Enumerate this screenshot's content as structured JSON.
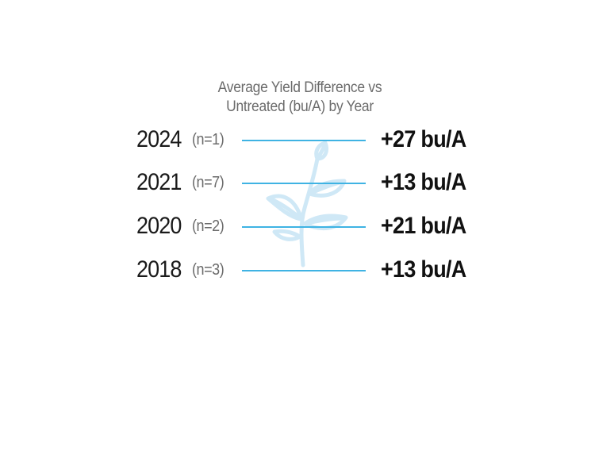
{
  "title": {
    "line1": "Average Yield Difference vs",
    "line2": "Untreated (bu/A) by Year"
  },
  "accent_color": "#3fb3e3",
  "watermark_icon": "plant-sprout-icon",
  "rows": [
    {
      "year": "2024",
      "count": "(n=1)",
      "value": "+27 bu/A"
    },
    {
      "year": "2021",
      "count": "(n=7)",
      "value": "+13 bu/A"
    },
    {
      "year": "2020",
      "count": "(n=2)",
      "value": "+21 bu/A"
    },
    {
      "year": "2018",
      "count": "(n=3)",
      "value": "+13 bu/A"
    }
  ]
}
